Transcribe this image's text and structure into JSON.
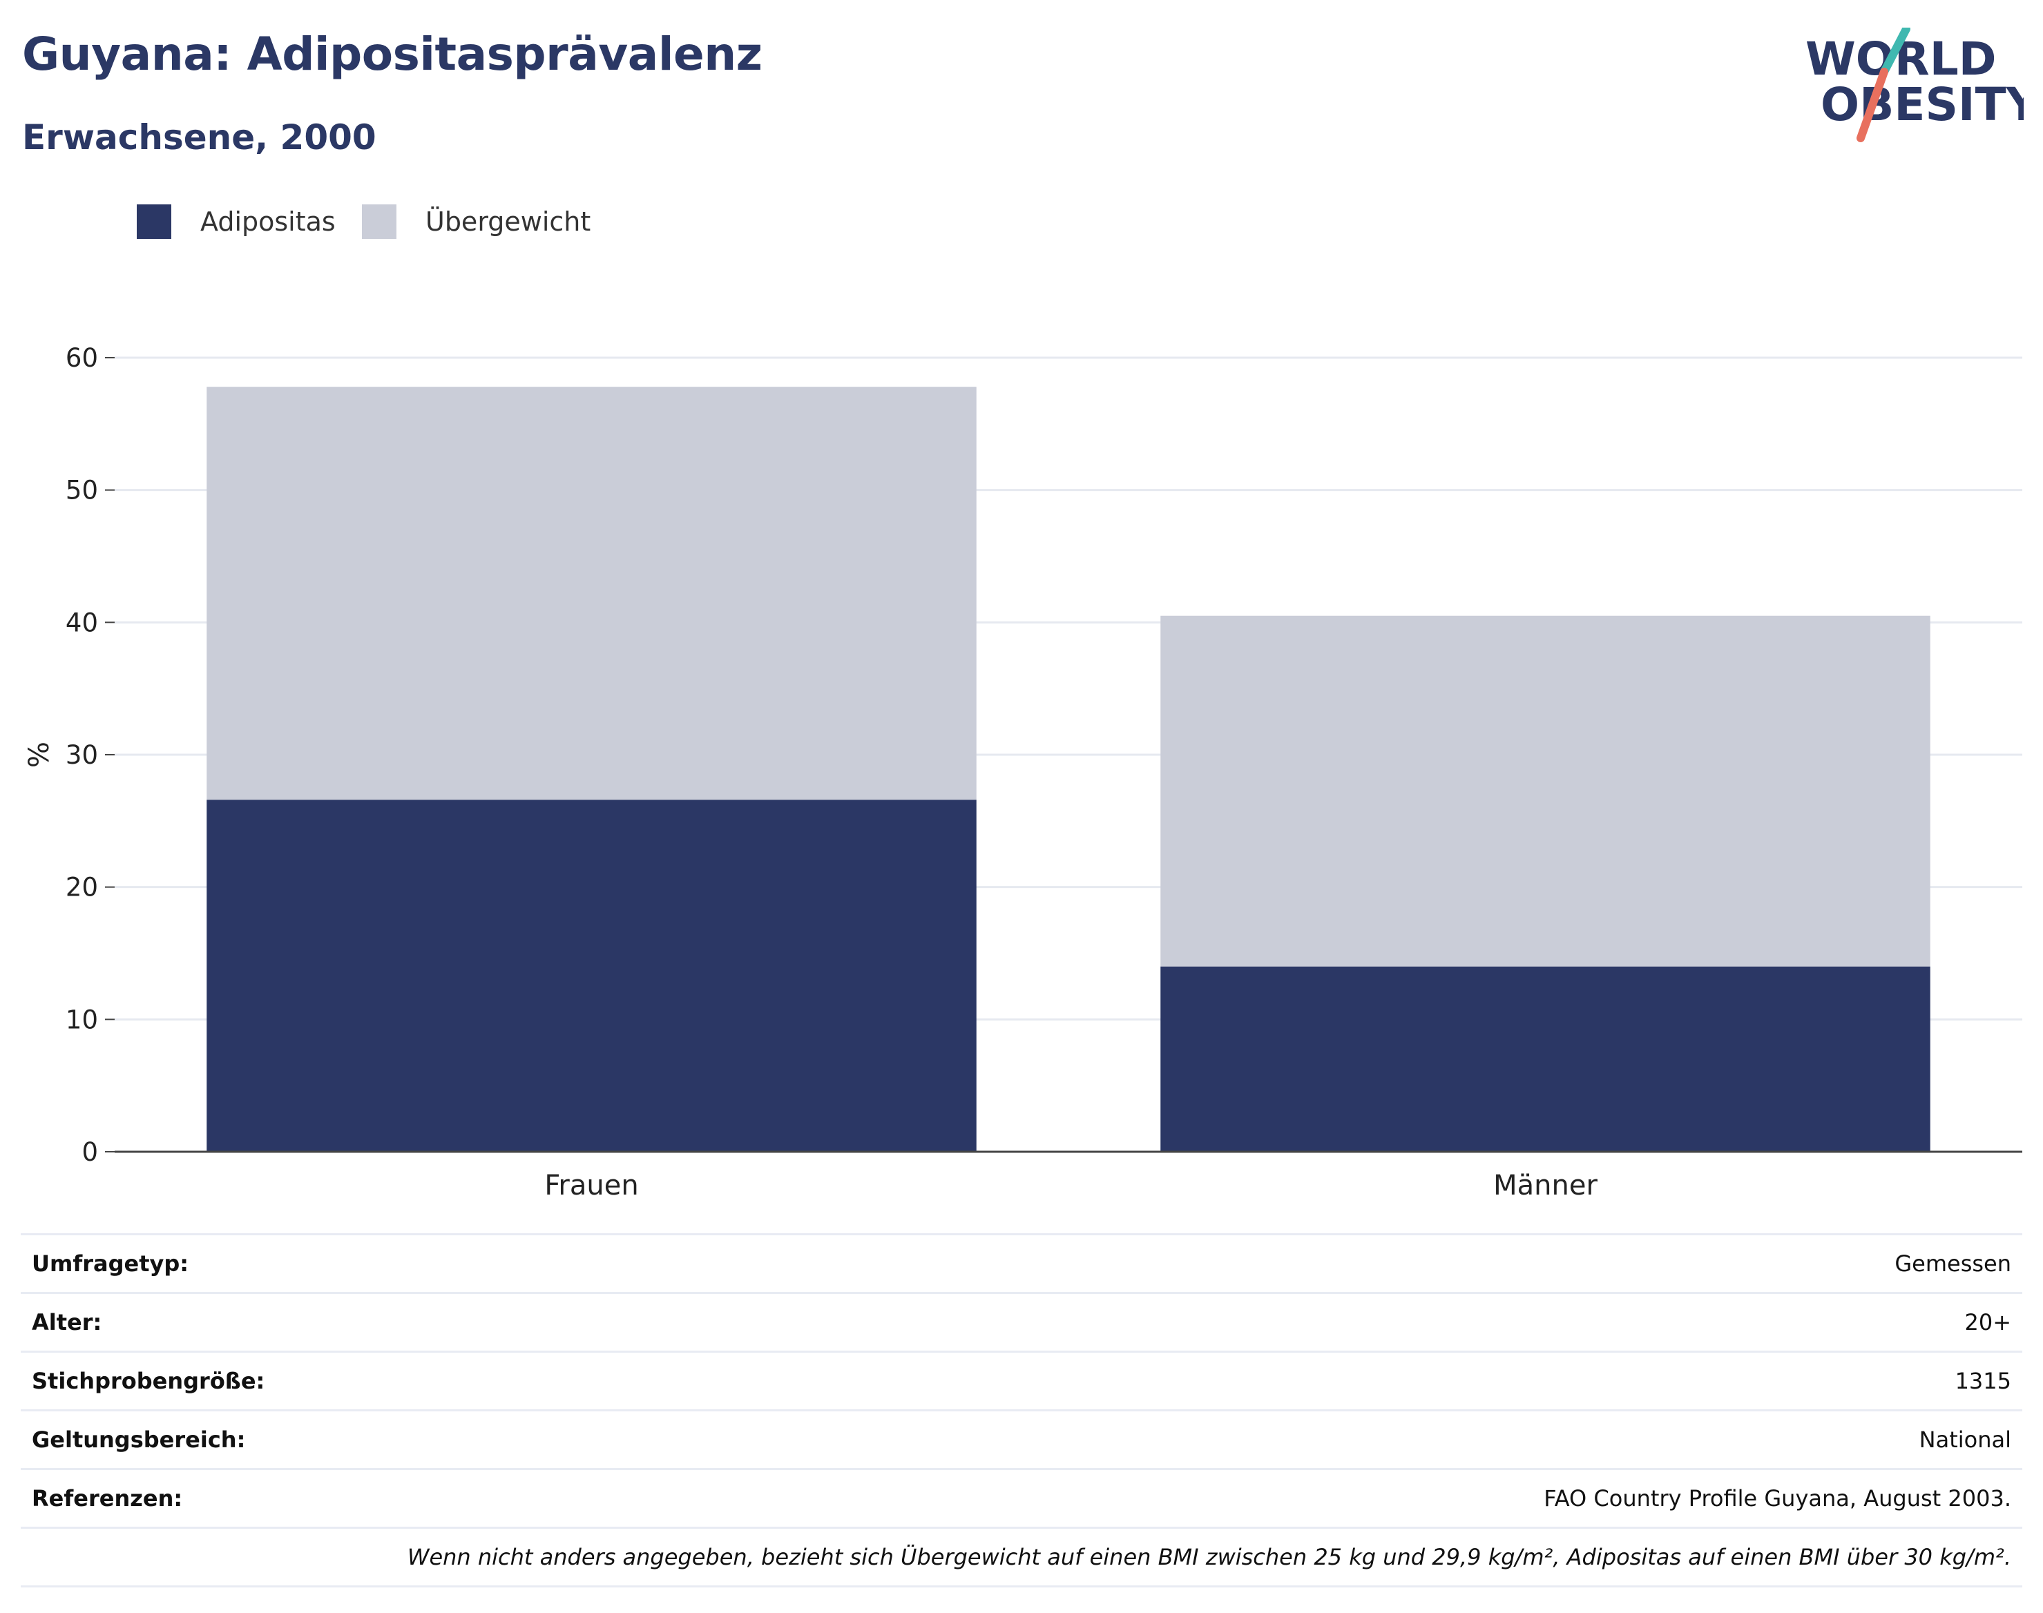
{
  "header": {
    "title": "Guyana: Adipositasprävalenz",
    "subtitle": "Erwachsene, 2000",
    "logo_line1": "WORLD",
    "logo_line2": "OBESITY"
  },
  "colors": {
    "obesity": "#2b3765",
    "overweight": "#cacdd8",
    "title": "#2b3865",
    "grid": "#e6e9f0",
    "logo_teal": "#3fb8b0",
    "logo_coral": "#e8705e"
  },
  "legend": {
    "items": [
      {
        "label": "Adipositas",
        "color": "#2b3765"
      },
      {
        "label": "Übergewicht",
        "color": "#cacdd8"
      }
    ]
  },
  "chart_data": {
    "type": "bar",
    "stacked": true,
    "categories": [
      "Frauen",
      "Männer"
    ],
    "series": [
      {
        "name": "Adipositas",
        "values": [
          26.6,
          14.0
        ]
      },
      {
        "name": "Übergewicht",
        "values": [
          31.2,
          26.5
        ]
      }
    ],
    "ylabel": "%",
    "xlabel": "",
    "ylim": [
      0,
      60
    ],
    "yticks": [
      0,
      10,
      20,
      30,
      40,
      50,
      60
    ],
    "grid": true,
    "legend_position": "top-left"
  },
  "info": {
    "rows": [
      {
        "key": "Umfragetyp:",
        "value": "Gemessen"
      },
      {
        "key": "Alter:",
        "value": "20+"
      },
      {
        "key": "Stichprobengröße:",
        "value": "1315"
      },
      {
        "key": "Geltungsbereich:",
        "value": "National"
      },
      {
        "key": "Referenzen:",
        "value": "FAO Country Profile Guyana, August 2003."
      }
    ],
    "note": "Wenn nicht anders angegeben, bezieht sich Übergewicht auf einen BMI zwischen 25 kg und 29,9 kg/m², Adipositas auf einen BMI über 30 kg/m²."
  }
}
